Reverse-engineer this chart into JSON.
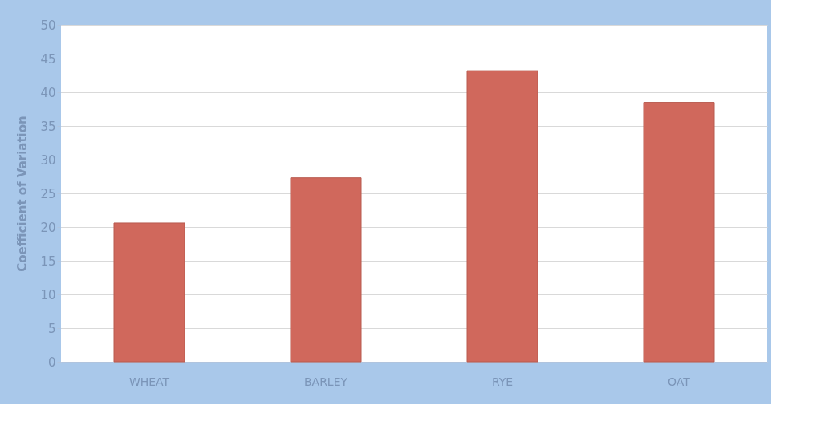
{
  "chart_data": {
    "type": "bar",
    "ylabel": "Coefficient of Variation",
    "categories": [
      "WHEAT",
      "BARLEY",
      "RYE",
      "OAT"
    ],
    "values": [
      20.6,
      27.3,
      43.2,
      38.5
    ],
    "color": "#d0685c",
    "ylim": [
      0,
      50
    ],
    "yticks": [
      0,
      5,
      10,
      15,
      20,
      25,
      30,
      35,
      40,
      45,
      50
    ],
    "grid": "y"
  }
}
